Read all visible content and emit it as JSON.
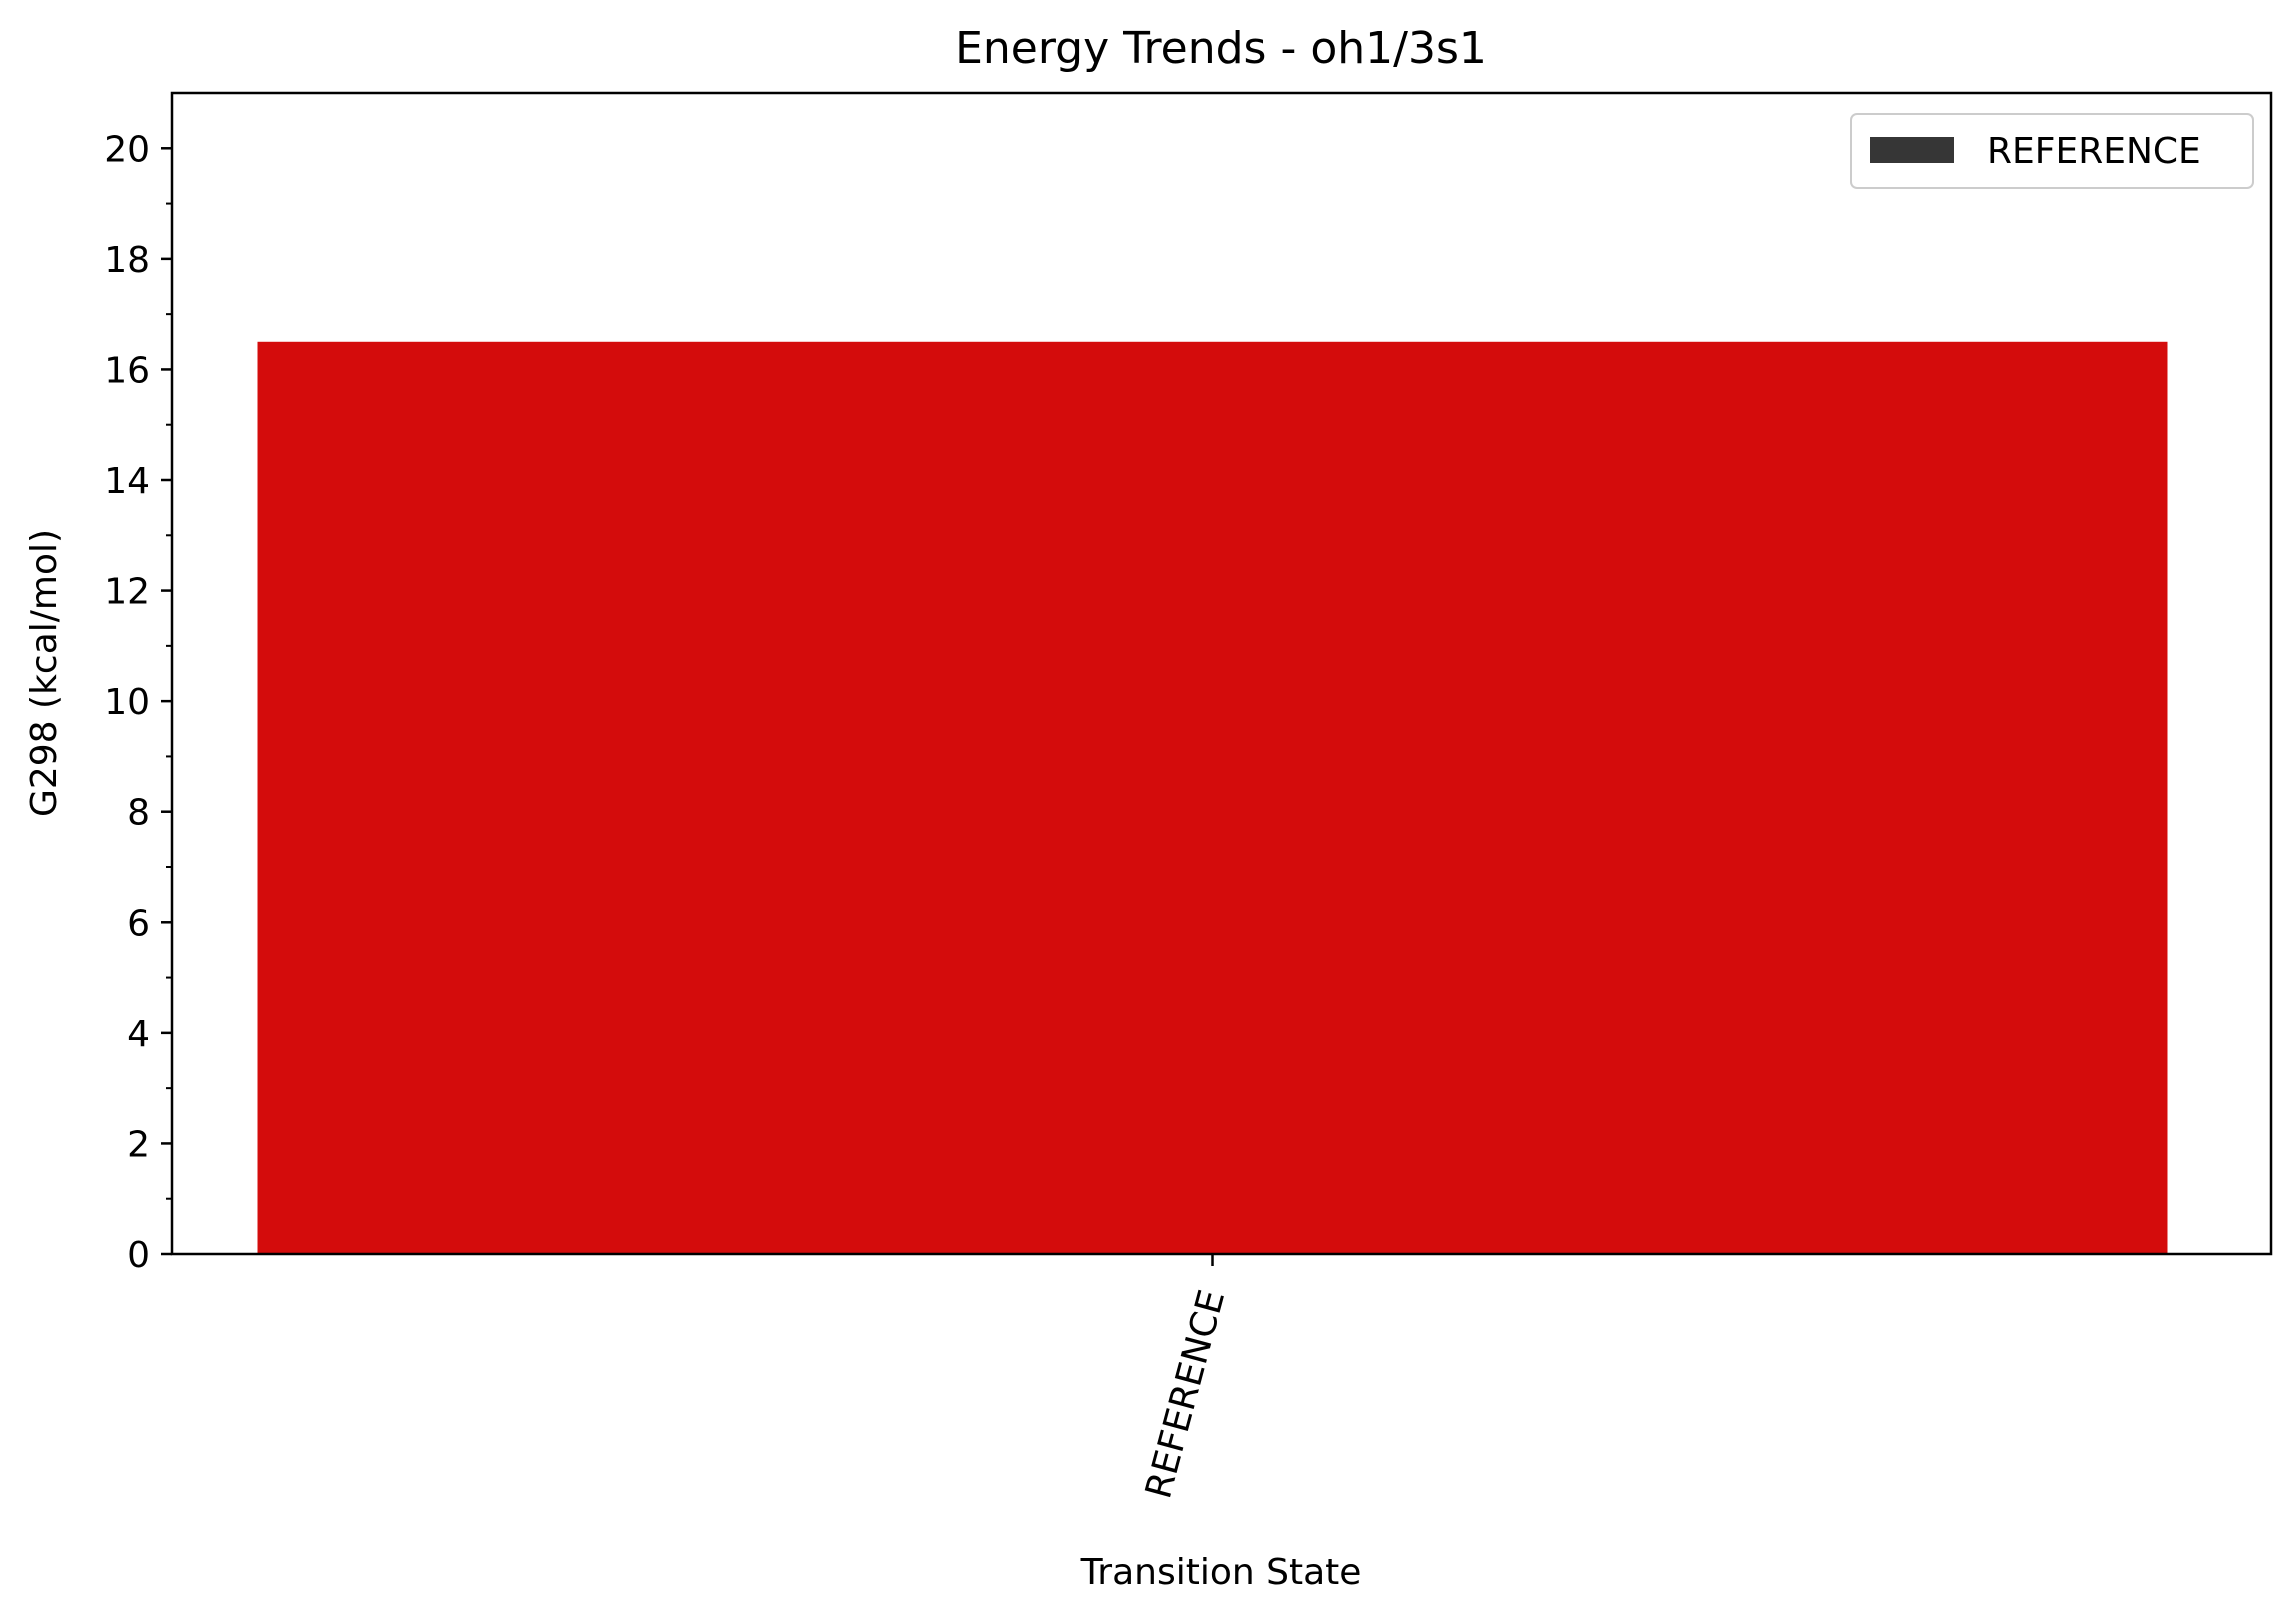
{
  "chart_data": {
    "type": "bar",
    "title": "Energy Trends - oh1/3s1",
    "xlabel": "Transition State",
    "ylabel": "G298 (kcal/mol)",
    "categories": [
      "REFERENCE"
    ],
    "values": [
      16.5
    ],
    "ylim": [
      0,
      21
    ],
    "yticks": [
      0,
      2,
      4,
      6,
      8,
      10,
      12,
      14,
      16,
      18,
      20
    ],
    "grid": false,
    "legend": {
      "position": "top-right",
      "entries": [
        {
          "label": "REFERENCE",
          "color": "#363636"
        }
      ]
    },
    "colors": {
      "bar": "#d40c0c",
      "legend_patch": "#363636"
    }
  }
}
